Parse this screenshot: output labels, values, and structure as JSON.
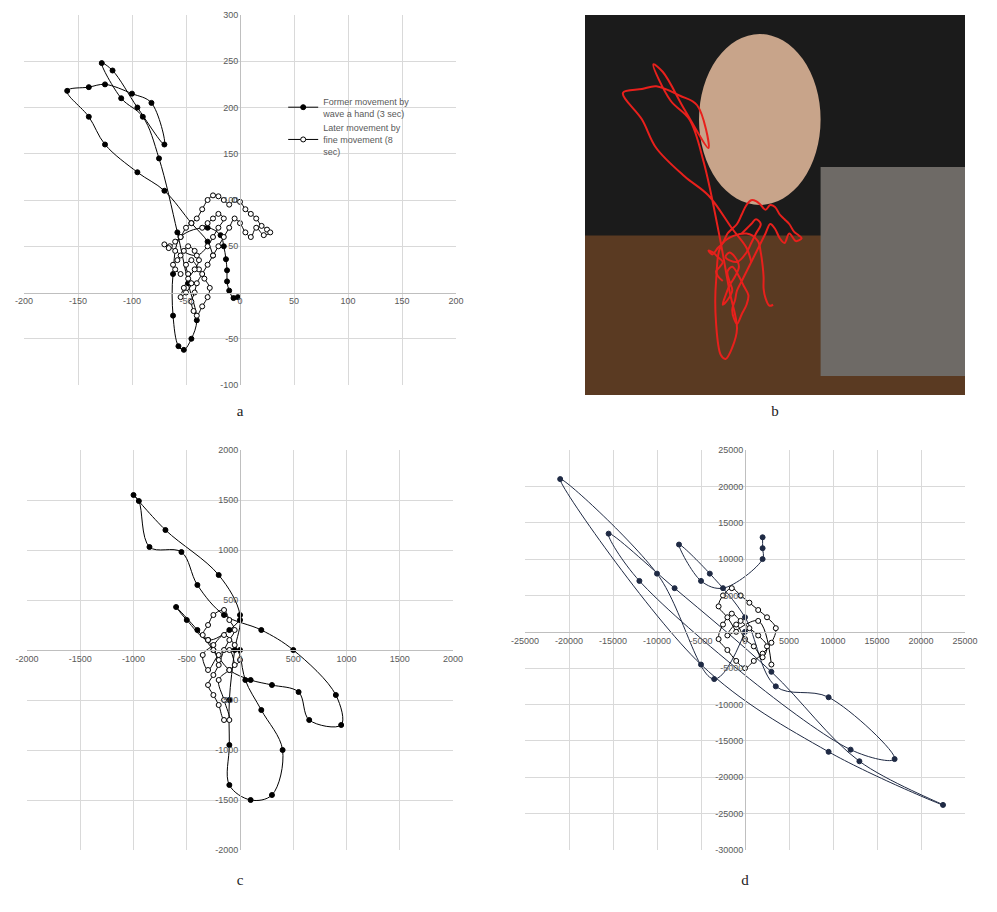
{
  "chart_data": [
    {
      "type": "scatter",
      "caption": "a",
      "grid": true,
      "legend": "upper right",
      "line_style": "smooth",
      "xlim": [
        -200,
        200
      ],
      "xticks": [
        -200,
        -150,
        -100,
        -50,
        0,
        50,
        100,
        150,
        200
      ],
      "ylim": [
        -100,
        300
      ],
      "yticks": [
        -100,
        -50,
        50,
        100,
        150,
        200,
        250,
        300
      ],
      "series": [
        {
          "name": "Former movement by wave a hand (3 sec)",
          "color": "#000000",
          "marker": "circle",
          "x": [
            -2,
            -6,
            -10,
            -12,
            -12,
            -13,
            -15,
            -18,
            -30,
            -55,
            -62,
            -62,
            -57,
            -52,
            -45,
            -40,
            -48,
            -58,
            -75,
            -90,
            -110,
            -128,
            -118,
            -95,
            -70,
            -82,
            -100,
            -125,
            -140,
            -160,
            -140,
            -125,
            -95,
            -70,
            -45,
            -30,
            -25
          ],
          "y": [
            -5,
            -6,
            2,
            12,
            24,
            36,
            50,
            62,
            70,
            60,
            20,
            -25,
            -58,
            -62,
            -50,
            -30,
            10,
            65,
            145,
            190,
            210,
            248,
            240,
            200,
            160,
            205,
            215,
            225,
            222,
            218,
            190,
            160,
            130,
            110,
            75,
            55,
            40
          ]
        },
        {
          "name": "Later movement by fine movement (8 sec)",
          "color": "#000000",
          "marker": "circle-open",
          "x": [
            -55,
            -60,
            -62,
            -58,
            -55,
            -60,
            -65,
            -70,
            -66,
            -60,
            -55,
            -50,
            -45,
            -40,
            -35,
            -30,
            -25,
            -20,
            -15,
            -10,
            -5,
            0,
            5,
            10,
            15,
            20,
            25,
            28,
            22,
            15,
            10,
            5,
            0,
            -5,
            -10,
            -15,
            -20,
            -25,
            -30,
            -35,
            -40,
            -42,
            -45,
            -43,
            -40,
            -35,
            -30,
            -28,
            -33,
            -38,
            -45,
            -50,
            -48,
            -45,
            -50,
            -55,
            -52,
            -48,
            -42,
            -38,
            -42,
            -48,
            -52,
            -40,
            -30,
            -25,
            -20,
            -15,
            -20,
            -25,
            -30,
            -35
          ],
          "y": [
            20,
            25,
            30,
            35,
            40,
            45,
            50,
            52,
            48,
            55,
            60,
            70,
            75,
            80,
            90,
            100,
            105,
            104,
            100,
            95,
            100,
            98,
            90,
            85,
            80,
            72,
            68,
            65,
            62,
            70,
            60,
            65,
            75,
            80,
            70,
            60,
            50,
            40,
            30,
            20,
            10,
            0,
            -10,
            -20,
            -25,
            -15,
            -5,
            5,
            15,
            25,
            35,
            30,
            20,
            10,
            0,
            -5,
            5,
            15,
            25,
            35,
            45,
            50,
            45,
            40,
            50,
            60,
            70,
            80,
            85,
            80,
            75,
            70
          ]
        }
      ]
    },
    {
      "type": "line",
      "caption": "b",
      "color": "#e8201c",
      "tick_labels": false,
      "grid": false
    },
    {
      "type": "scatter",
      "caption": "c",
      "grid": true,
      "line_style": "smooth",
      "xlim": [
        -2000,
        2000
      ],
      "xticks": [
        -2000,
        -1500,
        -1000,
        -500,
        0,
        500,
        1000,
        1500,
        2000
      ],
      "ylim": [
        -2000,
        2000
      ],
      "yticks": [
        -2000,
        -1500,
        -1000,
        -500,
        500,
        1000,
        1500,
        2000
      ],
      "series": [
        {
          "color": "#000000",
          "marker": "circle",
          "x": [
            0,
            -100,
            -300,
            -500,
            -600,
            -400,
            -250,
            -100,
            100,
            300,
            550,
            650,
            950,
            900,
            500,
            200,
            -150,
            -400,
            -550,
            -850,
            -950,
            -1000,
            -700,
            -200,
            0,
            -50,
            -100,
            -100,
            -100,
            100,
            300,
            400,
            200,
            50,
            0
          ],
          "y": [
            300,
            200,
            100,
            300,
            430,
            200,
            0,
            -200,
            -300,
            -350,
            -420,
            -700,
            -750,
            -450,
            0,
            200,
            350,
            650,
            980,
            1030,
            1490,
            1550,
            1200,
            750,
            350,
            0,
            -500,
            -950,
            -1350,
            -1500,
            -1450,
            -1000,
            -600,
            -300,
            0
          ]
        },
        {
          "color": "#000000",
          "marker": "circle-open",
          "x": [
            -200,
            -250,
            -300,
            -350,
            -300,
            -250,
            -150,
            -100,
            -50,
            -100,
            -150,
            -200,
            -250,
            -300,
            -250,
            -200,
            -150,
            -100,
            -150,
            -200,
            -100,
            0,
            -50,
            -150,
            -250,
            -350,
            -300,
            -200,
            -100,
            -50
          ],
          "y": [
            -100,
            0,
            100,
            150,
            250,
            350,
            400,
            300,
            200,
            100,
            0,
            -150,
            -250,
            -350,
            -450,
            -550,
            -700,
            -700,
            -500,
            -300,
            -200,
            -100,
            50,
            150,
            50,
            -50,
            -200,
            -50,
            0,
            -150
          ]
        }
      ]
    },
    {
      "type": "scatter",
      "caption": "d",
      "grid": true,
      "line_style": "smooth",
      "xlim": [
        -25000,
        25000
      ],
      "xticks": [
        -25000,
        -20000,
        -15000,
        -10000,
        -5000,
        0,
        5000,
        10000,
        15000,
        20000,
        25000
      ],
      "ylim": [
        -30000,
        25000
      ],
      "yticks": [
        -30000,
        -25000,
        -20000,
        -15000,
        -10000,
        -5000,
        5000,
        10000,
        15000,
        20000,
        25000
      ],
      "series": [
        {
          "color": "#1f2a44",
          "marker": "circle",
          "x": [
            2000,
            2000,
            2000,
            -2500,
            -5000,
            -7500,
            -4000,
            0,
            3500,
            9500,
            17000,
            12000,
            -12000,
            -15500,
            -8000,
            3000,
            13000,
            22500,
            9500,
            -5000,
            -21000,
            -10000,
            -3500,
            0
          ],
          "y": [
            13000,
            11500,
            10000,
            6000,
            7000,
            12000,
            8000,
            2000,
            -7500,
            -9000,
            -17500,
            -16200,
            7000,
            13500,
            6000,
            -5500,
            -17800,
            -23800,
            -16500,
            -4500,
            21000,
            8000,
            -6500,
            0
          ]
        },
        {
          "color": "#000000",
          "marker": "circle-open",
          "x": [
            -1000,
            -2000,
            -3000,
            -2500,
            -1500,
            -500,
            500,
            1500,
            2500,
            3500,
            3000,
            2000,
            1000,
            0,
            -1000,
            -2000,
            -3000,
            -2500,
            -1500,
            -500,
            500,
            1500,
            2500,
            2000,
            1000,
            0,
            -1000,
            -2000,
            1500,
            3000
          ],
          "y": [
            0,
            2000,
            3500,
            5000,
            6000,
            5000,
            4000,
            3000,
            2000,
            500,
            -1500,
            -3000,
            -4000,
            -5000,
            -4000,
            -2500,
            -1000,
            1000,
            2500,
            1500,
            500,
            -500,
            -2000,
            -3500,
            -2000,
            -1000,
            1000,
            -500,
            1500,
            -4500
          ]
        }
      ]
    }
  ]
}
